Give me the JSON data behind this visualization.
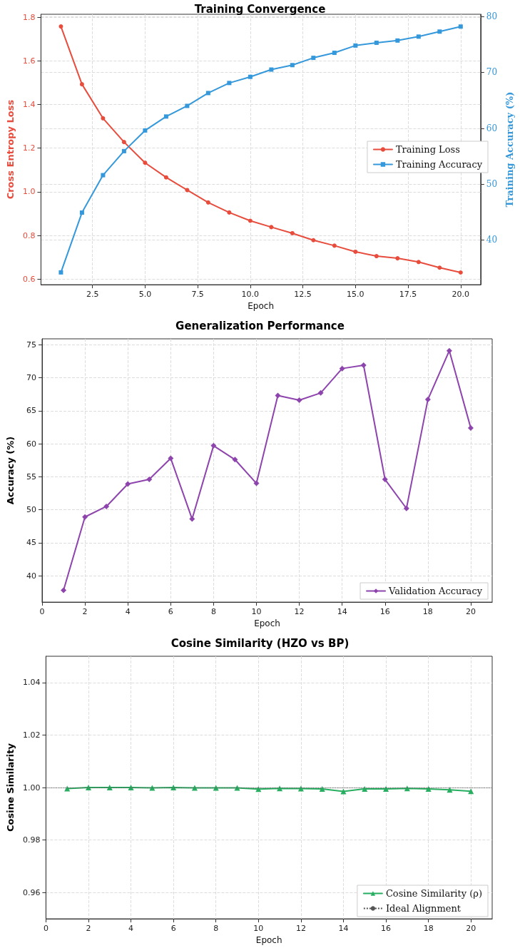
{
  "chart_data": [
    {
      "type": "line",
      "title": "Training Convergence",
      "xlabel": "Epoch",
      "ylabel": "Cross Entropy Loss",
      "y2label": "Training Accuracy (%)",
      "x": [
        1,
        2,
        3,
        4,
        5,
        6,
        7,
        8,
        9,
        10,
        11,
        12,
        13,
        14,
        15,
        16,
        17,
        18,
        19,
        20
      ],
      "series": [
        {
          "name": "Training Loss",
          "color": "#e74c3c",
          "marker": "circle",
          "values": [
            1.758,
            1.493,
            1.337,
            1.228,
            1.133,
            1.066,
            1.008,
            0.951,
            0.905,
            0.867,
            0.838,
            0.81,
            0.778,
            0.753,
            0.725,
            0.705,
            0.695,
            0.678,
            0.652,
            0.63
          ]
        },
        {
          "name": "Training Accuracy",
          "color": "#3498db",
          "marker": "square",
          "axis": "y2",
          "values": [
            34.2,
            44.9,
            51.6,
            55.9,
            59.6,
            62.1,
            64.0,
            66.3,
            68.1,
            69.2,
            70.5,
            71.3,
            72.6,
            73.5,
            74.8,
            75.3,
            75.7,
            76.4,
            77.3,
            78.2
          ]
        }
      ],
      "xlim": [
        0.05,
        20.95
      ],
      "xticks": [
        2.5,
        {
          "value": 5,
          "label": "5.0"
        },
        7.5,
        {
          "value": 10,
          "label": "10.0"
        },
        12.5,
        {
          "value": 15,
          "label": "15.0"
        },
        17.5,
        {
          "value": 20,
          "label": "20.0"
        }
      ],
      "ylim": [
        0.574,
        1.814
      ],
      "yticks": [
        0.6,
        0.8,
        {
          "value": 1,
          "label": "1.0"
        },
        1.2,
        1.4,
        1.6,
        1.8
      ],
      "y2lim": [
        32.0,
        80.4
      ],
      "y2ticks": [
        40,
        50,
        60,
        70,
        80
      ],
      "grid": true,
      "legend": "right",
      "line_style": "solid"
    },
    {
      "type": "line",
      "title": "Generalization Performance",
      "xlabel": "Epoch",
      "ylabel": "Accuracy (%)",
      "x": [
        1,
        2,
        3,
        4,
        5,
        6,
        7,
        8,
        9,
        10,
        11,
        12,
        13,
        14,
        15,
        16,
        17,
        18,
        19,
        20
      ],
      "series": [
        {
          "name": "Validation Accuracy",
          "color": "#8e44ad",
          "marker": "diamond",
          "values": [
            37.8,
            48.9,
            50.5,
            53.9,
            54.6,
            57.8,
            48.6,
            59.7,
            57.6,
            54.0,
            67.3,
            66.6,
            67.7,
            71.4,
            71.9,
            54.6,
            50.2,
            66.7,
            74.1,
            62.4
          ]
        }
      ],
      "xlim": [
        0,
        21
      ],
      "xticks": [
        0,
        2,
        4,
        6,
        8,
        10,
        12,
        14,
        16,
        18,
        20
      ],
      "ylim": [
        36.0,
        75.9
      ],
      "yticks": [
        40,
        45,
        50,
        55,
        60,
        65,
        70,
        75
      ],
      "grid": true,
      "legend": "bottom right",
      "line_style": "solid"
    },
    {
      "type": "line",
      "title": "Cosine Similarity (HZO vs BP)",
      "xlabel": "Epoch",
      "ylabel": "Cosine Similarity",
      "x": [
        1,
        2,
        3,
        4,
        5,
        6,
        7,
        8,
        9,
        10,
        11,
        12,
        13,
        14,
        15,
        16,
        17,
        18,
        19,
        20
      ],
      "series": [
        {
          "name": "Cosine Similarity (ρ)",
          "color": "#27ae60",
          "marker": "triangle",
          "values": [
            0.9996,
            1.0,
            1.0,
            1.0,
            0.9999,
            1.0,
            0.9999,
            0.9999,
            0.9999,
            0.9994,
            0.9997,
            0.9996,
            0.9995,
            0.9985,
            0.9995,
            0.9995,
            0.9997,
            0.9995,
            0.9991,
            0.9986
          ]
        }
      ],
      "ref_lines": [
        {
          "axis": "y",
          "value": 1.0,
          "label": "Ideal Alignment",
          "color": "#555555",
          "line_style": "dotted"
        }
      ],
      "xlim": [
        0,
        21
      ],
      "xticks": [
        0,
        2,
        4,
        6,
        8,
        10,
        12,
        14,
        16,
        18,
        20
      ],
      "ylim": [
        0.95,
        1.05
      ],
      "yticks": [
        0.96,
        0.98,
        {
          "value": 1.0,
          "label": "1.00"
        },
        1.02,
        1.04
      ],
      "grid": true,
      "legend": "bottom right",
      "line_style": "solid"
    }
  ]
}
